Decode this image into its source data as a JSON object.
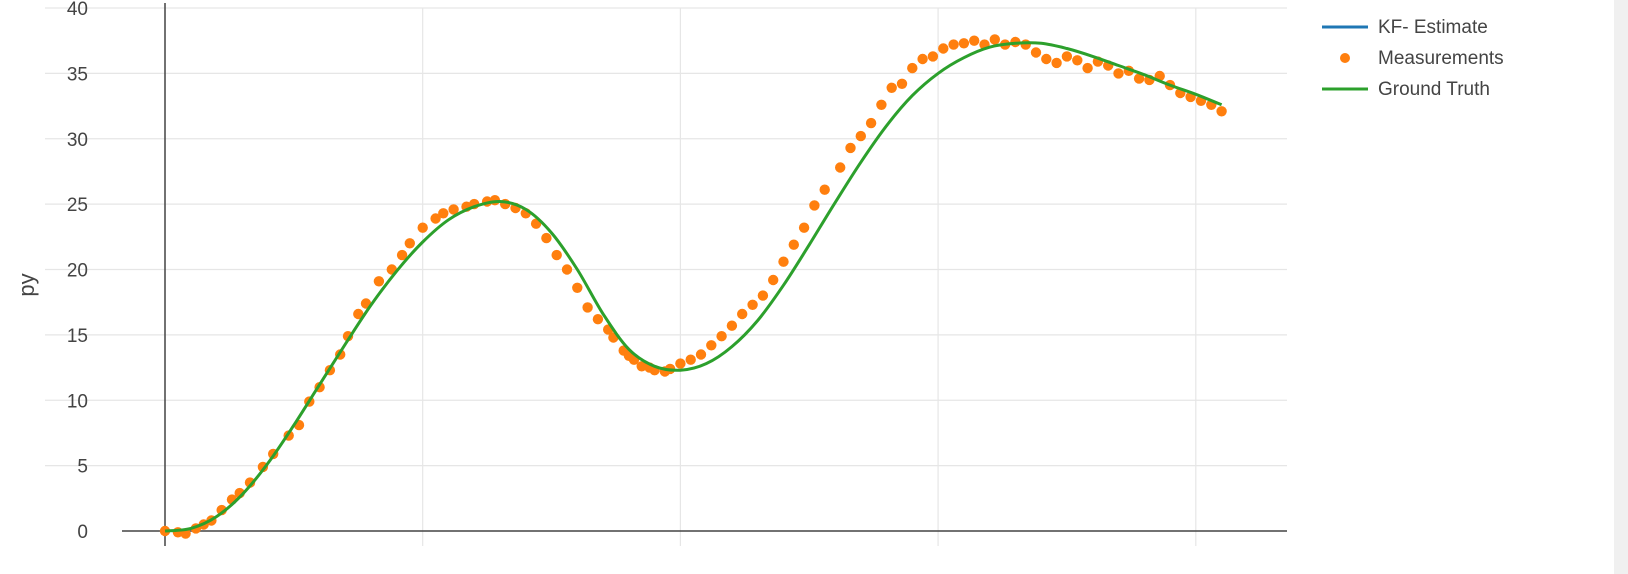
{
  "chart_data": {
    "type": "line",
    "title": "",
    "xlabel": "",
    "ylabel": "py",
    "xlim": [
      -0.5,
      4.0
    ],
    "ylim": [
      0,
      40
    ],
    "y_ticks": [
      0,
      5,
      10,
      15,
      20,
      25,
      30,
      35,
      40
    ],
    "x_gridlines": [
      1,
      2,
      3,
      4
    ],
    "grid": true,
    "legend": {
      "position": "top-right"
    },
    "colors": {
      "kf": "#1f77b4",
      "measurements": "#ff7f0e",
      "truth": "#2ca02c",
      "grid": "#e6e6e6",
      "axis": "#444444"
    },
    "series": [
      {
        "name": "KF- Estimate",
        "kind": "line",
        "x": [],
        "y": []
      },
      {
        "name": "Measurements",
        "kind": "markers",
        "x": [
          0.0,
          0.05,
          0.08,
          0.12,
          0.15,
          0.18,
          0.22,
          0.26,
          0.29,
          0.33,
          0.38,
          0.42,
          0.48,
          0.52,
          0.56,
          0.6,
          0.64,
          0.68,
          0.71,
          0.75,
          0.78,
          0.83,
          0.88,
          0.92,
          0.95,
          1.0,
          1.05,
          1.08,
          1.12,
          1.17,
          1.2,
          1.25,
          1.28,
          1.32,
          1.36,
          1.4,
          1.44,
          1.48,
          1.52,
          1.56,
          1.6,
          1.64,
          1.68,
          1.72,
          1.74,
          1.78,
          1.8,
          1.82,
          1.85,
          1.88,
          1.9,
          1.94,
          1.96,
          2.0,
          2.04,
          2.08,
          2.12,
          2.16,
          2.2,
          2.24,
          2.28,
          2.32,
          2.36,
          2.4,
          2.44,
          2.48,
          2.52,
          2.56,
          2.62,
          2.66,
          2.7,
          2.74,
          2.78,
          2.82,
          2.86,
          2.9,
          2.94,
          2.98,
          3.02,
          3.06,
          3.1,
          3.14,
          3.18,
          3.22,
          3.26,
          3.3,
          3.34,
          3.38,
          3.42,
          3.46,
          3.5,
          3.54,
          3.58,
          3.62,
          3.66,
          3.7,
          3.74,
          3.78,
          3.82,
          3.86,
          3.9,
          3.94,
          3.98,
          4.02,
          4.06,
          4.1
        ],
        "y": [
          0.0,
          -0.1,
          -0.2,
          0.2,
          0.5,
          0.8,
          1.6,
          2.4,
          2.9,
          3.7,
          4.9,
          5.9,
          7.3,
          8.1,
          9.9,
          11.0,
          12.3,
          13.5,
          14.9,
          16.6,
          17.4,
          19.1,
          20.0,
          21.1,
          22.0,
          23.2,
          23.9,
          24.3,
          24.6,
          24.8,
          25.0,
          25.2,
          25.3,
          25.0,
          24.7,
          24.3,
          23.5,
          22.4,
          21.1,
          20.0,
          18.6,
          17.1,
          16.2,
          15.4,
          14.8,
          13.8,
          13.4,
          13.1,
          12.6,
          12.5,
          12.3,
          12.2,
          12.4,
          12.8,
          13.1,
          13.5,
          14.2,
          14.9,
          15.7,
          16.6,
          17.3,
          18.0,
          19.2,
          20.6,
          21.9,
          23.2,
          24.9,
          26.1,
          27.8,
          29.3,
          30.2,
          31.2,
          32.6,
          33.9,
          34.2,
          35.4,
          36.1,
          36.3,
          36.9,
          37.2,
          37.3,
          37.5,
          37.2,
          37.6,
          37.2,
          37.4,
          37.2,
          36.6,
          36.1,
          35.8,
          36.3,
          36.0,
          35.4,
          35.9,
          35.6,
          35.0,
          35.2,
          34.6,
          34.5,
          34.8,
          34.1,
          33.5,
          33.2,
          32.9,
          32.6,
          32.1
        ]
      },
      {
        "name": "Ground Truth",
        "kind": "line",
        "x": [
          0.0,
          0.1,
          0.2,
          0.3,
          0.4,
          0.5,
          0.6,
          0.7,
          0.8,
          0.9,
          1.0,
          1.1,
          1.2,
          1.3,
          1.4,
          1.5,
          1.6,
          1.7,
          1.8,
          1.9,
          2.0,
          2.1,
          2.2,
          2.3,
          2.4,
          2.5,
          2.6,
          2.7,
          2.8,
          2.9,
          3.0,
          3.1,
          3.2,
          3.3,
          3.4,
          3.5,
          3.6,
          3.7,
          3.8,
          3.9,
          4.0,
          4.1
        ],
        "y": [
          0.0,
          0.2,
          1.1,
          2.8,
          5.2,
          8.1,
          11.2,
          14.3,
          17.3,
          19.9,
          22.1,
          23.8,
          24.8,
          25.2,
          24.6,
          22.8,
          20.0,
          16.6,
          13.9,
          12.6,
          12.3,
          12.8,
          14.1,
          16.1,
          18.8,
          21.9,
          25.1,
          28.2,
          31.0,
          33.3,
          35.0,
          36.2,
          37.0,
          37.3,
          37.3,
          36.9,
          36.3,
          35.6,
          34.9,
          34.1,
          33.4,
          32.6
        ]
      }
    ]
  }
}
